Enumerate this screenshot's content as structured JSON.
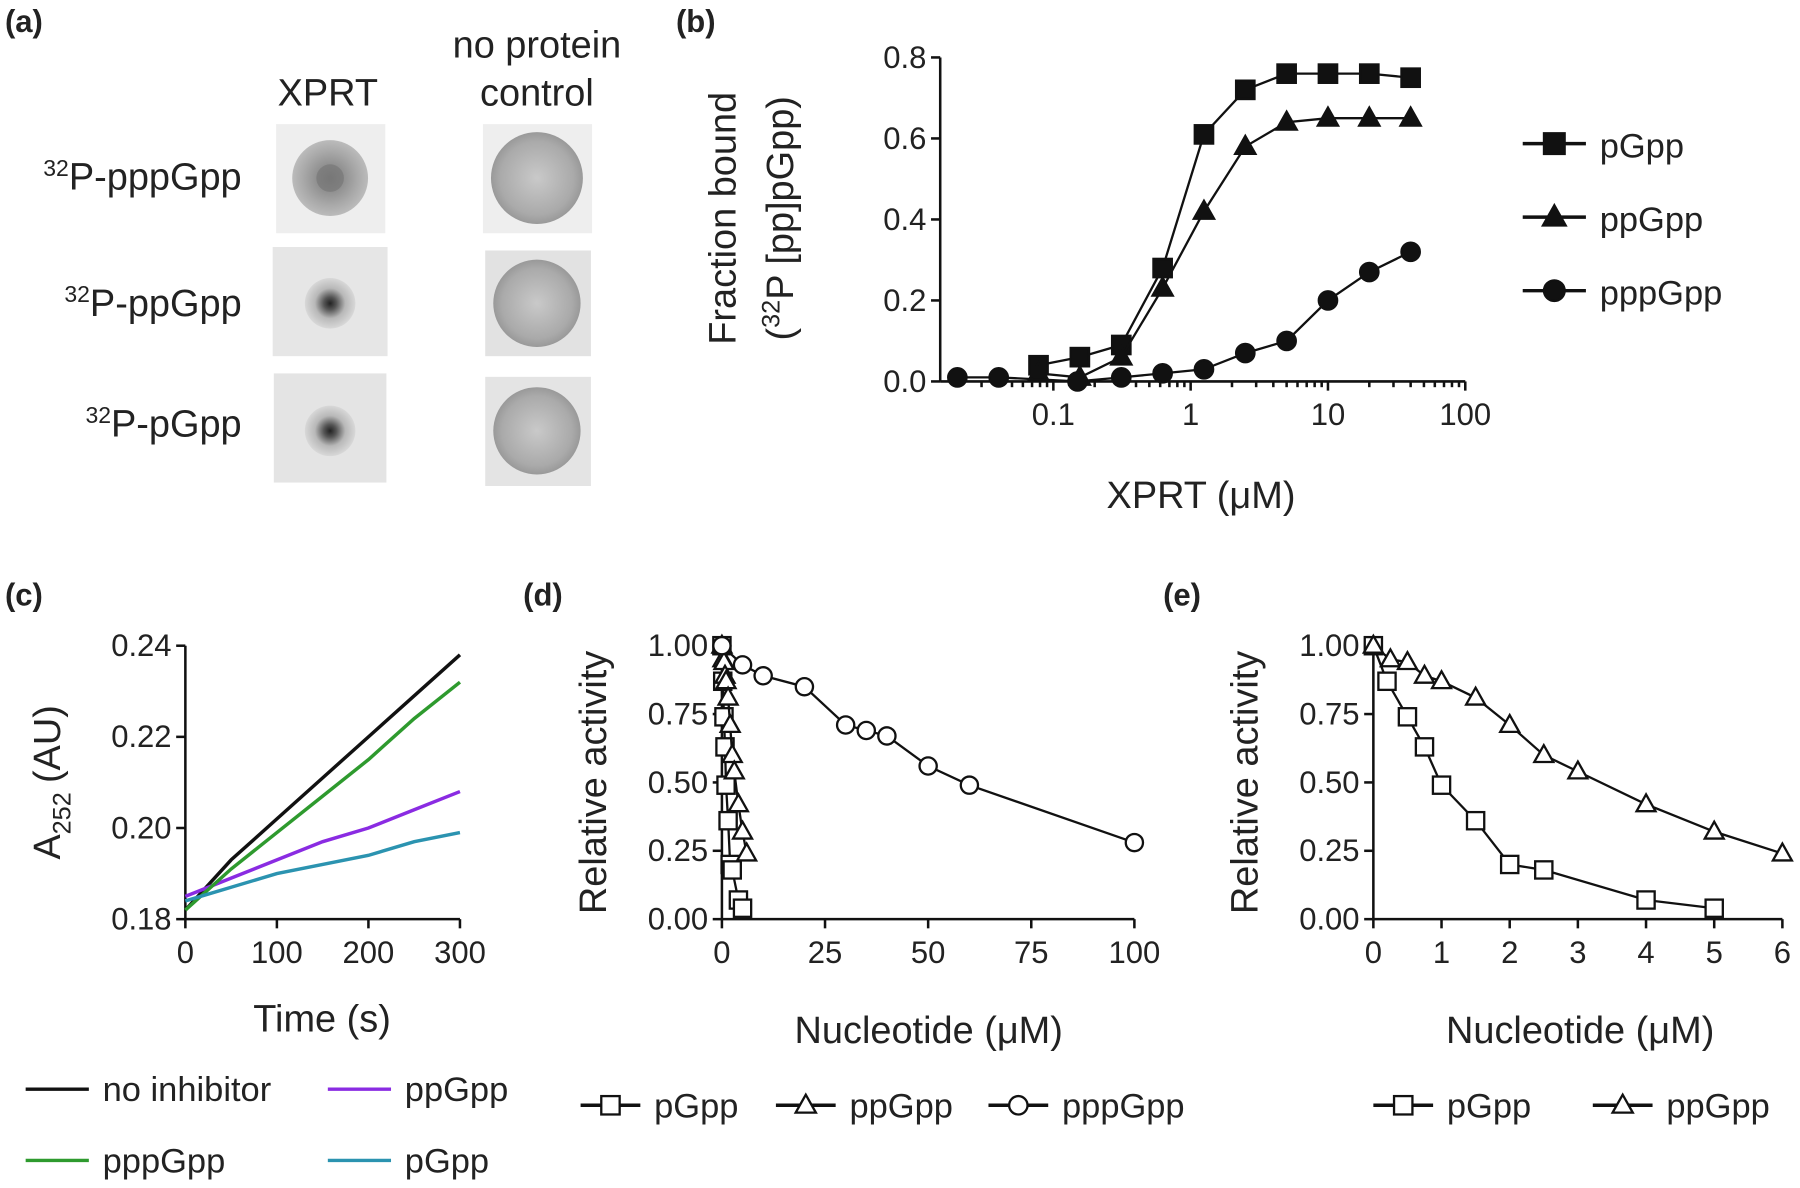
{
  "panel_a": {
    "label": "(a)",
    "column_1": "XPRT",
    "column_2_line_1": "no protein",
    "column_2_line_2": "control",
    "rows": [
      {
        "sup": "32",
        "name": "P-pppGpp"
      },
      {
        "sup": "32",
        "name": "P-ppGpp"
      },
      {
        "sup": "32",
        "name": "P-pGpp"
      }
    ]
  },
  "chart_data": [
    {
      "panel": "(b)",
      "type": "scatter",
      "x_label": "XPRT (μM)",
      "y_label": "Fraction bound",
      "y_label_2_open": "(",
      "y_label_2_sup": "32",
      "y_label_2_rest": "P [pp]pGpp)",
      "log_x": true,
      "xlim": [
        0.015,
        100
      ],
      "xticks": [
        0.1,
        1,
        10,
        100
      ],
      "ylim": [
        0,
        0.8
      ],
      "yticks": [
        {
          "value": 0,
          "label": "0.0"
        },
        0.2,
        0.4,
        0.6,
        0.8
      ],
      "series": [
        {
          "name": "pGpp",
          "marker": "square",
          "filled": true,
          "color": "#111111",
          "x": [
            0.078,
            0.156,
            0.3125,
            0.625,
            1.25,
            2.5,
            5,
            10,
            20,
            40
          ],
          "values": [
            0.04,
            0.06,
            0.09,
            0.28,
            0.61,
            0.72,
            0.76,
            0.76,
            0.76,
            0.75
          ]
        },
        {
          "name": "ppGpp",
          "marker": "triangle",
          "filled": true,
          "color": "#111111",
          "x": [
            0.078,
            0.156,
            0.3125,
            0.625,
            1.25,
            2.5,
            5,
            10,
            20,
            40
          ],
          "values": [
            0.02,
            0.01,
            0.06,
            0.23,
            0.42,
            0.58,
            0.64,
            0.65,
            0.65,
            0.65
          ]
        },
        {
          "name": "pppGpp",
          "marker": "circle",
          "filled": true,
          "color": "#111111",
          "x": [
            0.02,
            0.04,
            0.15,
            0.3125,
            0.625,
            1.25,
            2.5,
            5,
            10,
            20,
            40
          ],
          "values": [
            0.01,
            0.01,
            0.0,
            0.01,
            0.02,
            0.03,
            0.07,
            0.1,
            0.2,
            0.27,
            0.32
          ]
        }
      ]
    },
    {
      "panel": "(c)",
      "type": "line",
      "x_label": "Time (s)",
      "y_label": "A",
      "y_label_sub": "252",
      "y_label_rest": "(AU)",
      "xlim": [
        0,
        300
      ],
      "xticks": [
        0,
        100,
        200,
        300
      ],
      "ylim": [
        0.18,
        0.24
      ],
      "yticks": [
        0.18,
        {
          "value": 0.2,
          "label": "0.20"
        },
        0.22,
        0.24
      ],
      "x": [
        0,
        50,
        100,
        150,
        200,
        250,
        300
      ],
      "series": [
        {
          "name": "no inhibitor",
          "color": "#111111",
          "values": [
            0.182,
            0.193,
            0.202,
            0.211,
            0.22,
            0.229,
            0.238
          ]
        },
        {
          "name": "ppGpp",
          "color": "#8a2be2",
          "values": [
            0.185,
            0.189,
            0.193,
            0.197,
            0.2,
            0.204,
            0.208
          ]
        },
        {
          "name": "pppGpp",
          "color": "#2e9a2e",
          "values": [
            0.182,
            0.191,
            0.199,
            0.207,
            0.215,
            0.224,
            0.232
          ]
        },
        {
          "name": "pGpp",
          "color": "#2b93b0",
          "values": [
            0.184,
            0.187,
            0.19,
            0.192,
            0.194,
            0.197,
            0.199
          ]
        }
      ]
    },
    {
      "panel": "(d)",
      "type": "scatter",
      "x_label": "Nucleotide (μM)",
      "y_label": "Relative activity",
      "xlim": [
        0,
        100
      ],
      "xticks": [
        0,
        25,
        50,
        75,
        100
      ],
      "ylim": [
        0,
        1
      ],
      "yticks": [
        {
          "value": 0,
          "label": "0.00"
        },
        {
          "value": 0.25,
          "label": "0.25"
        },
        {
          "value": 0.5,
          "label": "0.50"
        },
        {
          "value": 0.75,
          "label": "0.75"
        },
        {
          "value": 1,
          "label": "1.00"
        }
      ],
      "series": [
        {
          "name": "pGpp",
          "marker": "square",
          "filled": false,
          "color": "#111111",
          "x": [
            0,
            0.2,
            0.5,
            0.75,
            1,
            1.5,
            2,
            2.5,
            4,
            5
          ],
          "values": [
            1.0,
            0.87,
            0.74,
            0.63,
            0.49,
            0.36,
            0.2,
            0.18,
            0.07,
            0.04
          ]
        },
        {
          "name": "ppGpp",
          "marker": "triangle",
          "filled": false,
          "color": "#111111",
          "x": [
            0,
            0.25,
            0.5,
            0.75,
            1,
            1.5,
            2,
            2.5,
            3,
            4,
            5,
            6
          ],
          "values": [
            1.0,
            0.95,
            0.94,
            0.89,
            0.87,
            0.81,
            0.71,
            0.6,
            0.54,
            0.42,
            0.32,
            0.24
          ]
        },
        {
          "name": "pppGpp",
          "marker": "circle",
          "filled": false,
          "color": "#111111",
          "x": [
            0,
            5,
            10,
            20,
            30,
            35,
            40,
            50,
            60,
            100
          ],
          "values": [
            1.0,
            0.93,
            0.89,
            0.85,
            0.71,
            0.69,
            0.67,
            0.56,
            0.49,
            0.28
          ]
        }
      ]
    },
    {
      "panel": "(e)",
      "type": "scatter",
      "x_label": "Nucleotide (μM)",
      "y_label": "Relative activity",
      "xlim": [
        0,
        6
      ],
      "xticks": [
        0,
        1,
        2,
        3,
        4,
        5,
        6
      ],
      "ylim": [
        0,
        1
      ],
      "yticks": [
        {
          "value": 0,
          "label": "0.00"
        },
        {
          "value": 0.25,
          "label": "0.25"
        },
        {
          "value": 0.5,
          "label": "0.50"
        },
        {
          "value": 0.75,
          "label": "0.75"
        },
        {
          "value": 1,
          "label": "1.00"
        }
      ],
      "series": [
        {
          "name": "pGpp",
          "marker": "square",
          "filled": false,
          "color": "#111111",
          "x": [
            0,
            0.2,
            0.5,
            0.75,
            1,
            1.5,
            2,
            2.5,
            4,
            5
          ],
          "values": [
            1.0,
            0.87,
            0.74,
            0.63,
            0.49,
            0.36,
            0.2,
            0.18,
            0.07,
            0.04
          ]
        },
        {
          "name": "ppGpp",
          "marker": "triangle",
          "filled": false,
          "color": "#111111",
          "x": [
            0,
            0.25,
            0.5,
            0.75,
            1,
            1.5,
            2,
            2.5,
            3,
            4,
            5,
            6
          ],
          "values": [
            1.0,
            0.95,
            0.94,
            0.89,
            0.87,
            0.81,
            0.71,
            0.6,
            0.54,
            0.42,
            0.32,
            0.24
          ]
        }
      ]
    }
  ]
}
